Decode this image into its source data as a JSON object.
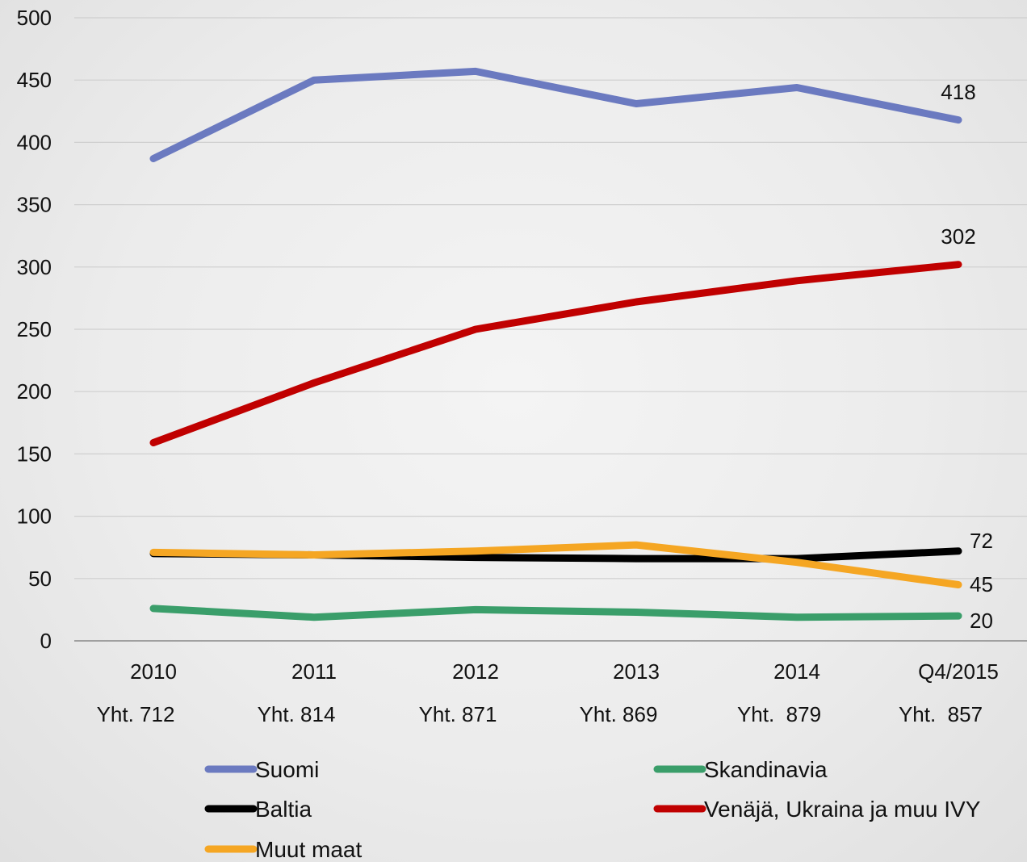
{
  "chart_data": {
    "type": "line",
    "title": "",
    "xlabel": "",
    "ylabel": "",
    "ylim": [
      0,
      500
    ],
    "yticks": [
      0,
      50,
      100,
      150,
      200,
      250,
      300,
      350,
      400,
      450,
      500
    ],
    "grid": true,
    "legend_position": "bottom",
    "categories": [
      "2010",
      "2011",
      "2012",
      "2013",
      "2014",
      "Q4/2015"
    ],
    "totals": [
      "Yht. 712",
      "Yht. 814",
      "Yht. 871",
      "Yht. 869",
      "Yht.  879",
      "Yht.  857"
    ],
    "series": [
      {
        "name": "Suomi",
        "color": "#6b7ac0",
        "values": [
          387,
          450,
          457,
          431,
          444,
          418
        ],
        "end_label": "418"
      },
      {
        "name": "Skandinavia",
        "color": "#3a9e6a",
        "values": [
          26,
          19,
          25,
          23,
          19,
          20
        ],
        "end_label": "20"
      },
      {
        "name": "Baltia",
        "color": "#000000",
        "values": [
          70,
          69,
          67,
          66,
          66,
          72
        ],
        "end_label": "72"
      },
      {
        "name": "Venäjä, Ukraina ja muu IVY",
        "color": "#c00000",
        "values": [
          159,
          207,
          250,
          272,
          289,
          302
        ],
        "end_label": "302"
      },
      {
        "name": "Muut maat",
        "color": "#f5a623",
        "values": [
          71,
          69,
          72,
          77,
          63,
          45
        ],
        "end_label": "45"
      }
    ]
  }
}
